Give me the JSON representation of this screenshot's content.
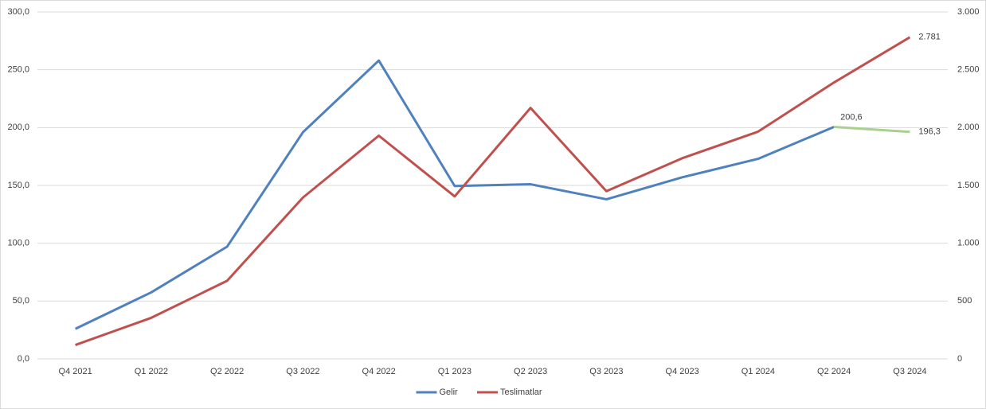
{
  "chart_data": {
    "type": "line",
    "categories": [
      "Q4 2021",
      "Q1 2022",
      "Q2 2022",
      "Q3 2022",
      "Q4 2022",
      "Q1 2023",
      "Q2 2023",
      "Q3 2023",
      "Q4 2023",
      "Q1 2024",
      "Q2 2024",
      "Q3 2024"
    ],
    "series": [
      {
        "name": "Gelir",
        "color": "#4f81bd",
        "last_segment_color": "#a9d18e",
        "axis": "y",
        "values": [
          26,
          57.5,
          97,
          196,
          258,
          149.5,
          151,
          138,
          157,
          173,
          200.6,
          196.3
        ],
        "value_labels": [
          null,
          null,
          null,
          null,
          null,
          null,
          null,
          null,
          null,
          null,
          "200,6",
          "196,3"
        ]
      },
      {
        "name": "Teslimatlar",
        "color": "#c0504d",
        "axis": "y2",
        "values": [
          120,
          355,
          675,
          1395,
          1930,
          1405,
          2170,
          1450,
          1735,
          1965,
          2390,
          2781
        ],
        "value_labels": [
          null,
          null,
          null,
          null,
          null,
          null,
          null,
          null,
          null,
          null,
          null,
          "2.781"
        ]
      }
    ],
    "ylim": [
      0,
      300
    ],
    "yticks": [
      {
        "value": 0,
        "label": "0,0"
      },
      {
        "value": 50,
        "label": "50,0"
      },
      {
        "value": 100,
        "label": "100,0"
      },
      {
        "value": 150,
        "label": "150,0"
      },
      {
        "value": 200,
        "label": "200,0"
      },
      {
        "value": 250,
        "label": "250,0"
      },
      {
        "value": 300,
        "label": "300,0"
      }
    ],
    "y2lim": [
      0,
      3000
    ],
    "y2ticks": [
      0,
      500,
      {
        "value": 1000,
        "label": "1.000"
      },
      {
        "value": 1500,
        "label": "1.500"
      },
      {
        "value": 2000,
        "label": "2.000"
      },
      {
        "value": 2500,
        "label": "2.500"
      },
      {
        "value": 3000,
        "label": "3.000"
      }
    ],
    "grid": true,
    "legend": "bottom"
  }
}
